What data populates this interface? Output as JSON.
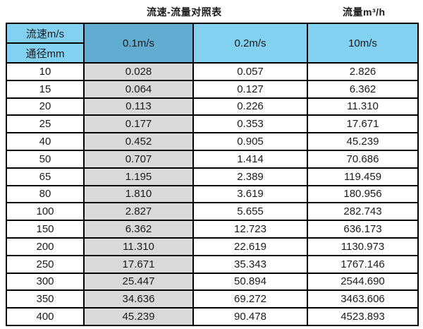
{
  "titles": {
    "main": "流速-流量对照表",
    "unit": "流量m³/h"
  },
  "colors": {
    "header_light_blue": "#82d1f0",
    "header_dark_blue": "#62acd2",
    "col1_gray": "#d9d9d9",
    "border": "#000000",
    "background": "#ffffff",
    "text": "#1a1a1a"
  },
  "chart_data": {
    "type": "table",
    "title": "流速-流量对照表",
    "flow_unit_label": "流量m³/h",
    "corner_headers": [
      "流速m/s",
      "通径mm"
    ],
    "columns": [
      "0.1m/s",
      "0.2m/s",
      "10m/s"
    ],
    "row_dimension": "通径mm",
    "rows": [
      {
        "diameter": "10",
        "values": [
          "0.028",
          "0.057",
          "2.826"
        ]
      },
      {
        "diameter": "15",
        "values": [
          "0.064",
          "0.127",
          "6.362"
        ]
      },
      {
        "diameter": "20",
        "values": [
          "0.113",
          "0.226",
          "11.310"
        ]
      },
      {
        "diameter": "25",
        "values": [
          "0.177",
          "0.353",
          "17.671"
        ]
      },
      {
        "diameter": "40",
        "values": [
          "0.452",
          "0.905",
          "45.239"
        ]
      },
      {
        "diameter": "50",
        "values": [
          "0.707",
          "1.414",
          "70.686"
        ]
      },
      {
        "diameter": "65",
        "values": [
          "1.195",
          "2.389",
          "119.459"
        ]
      },
      {
        "diameter": "80",
        "values": [
          "1.810",
          "3.619",
          "180.956"
        ]
      },
      {
        "diameter": "100",
        "values": [
          "2.827",
          "5.655",
          "282.743"
        ]
      },
      {
        "diameter": "150",
        "values": [
          "6.362",
          "12.723",
          "636.173"
        ]
      },
      {
        "diameter": "200",
        "values": [
          "11.310",
          "22.619",
          "1130.973"
        ]
      },
      {
        "diameter": "250",
        "values": [
          "17.671",
          "35.343",
          "1767.146"
        ]
      },
      {
        "diameter": "300",
        "values": [
          "25.447",
          "50.894",
          "2544.690"
        ]
      },
      {
        "diameter": "350",
        "values": [
          "34.636",
          "69.272",
          "3463.606"
        ]
      },
      {
        "diameter": "400",
        "values": [
          "45.239",
          "90.478",
          "4523.893"
        ]
      }
    ]
  }
}
